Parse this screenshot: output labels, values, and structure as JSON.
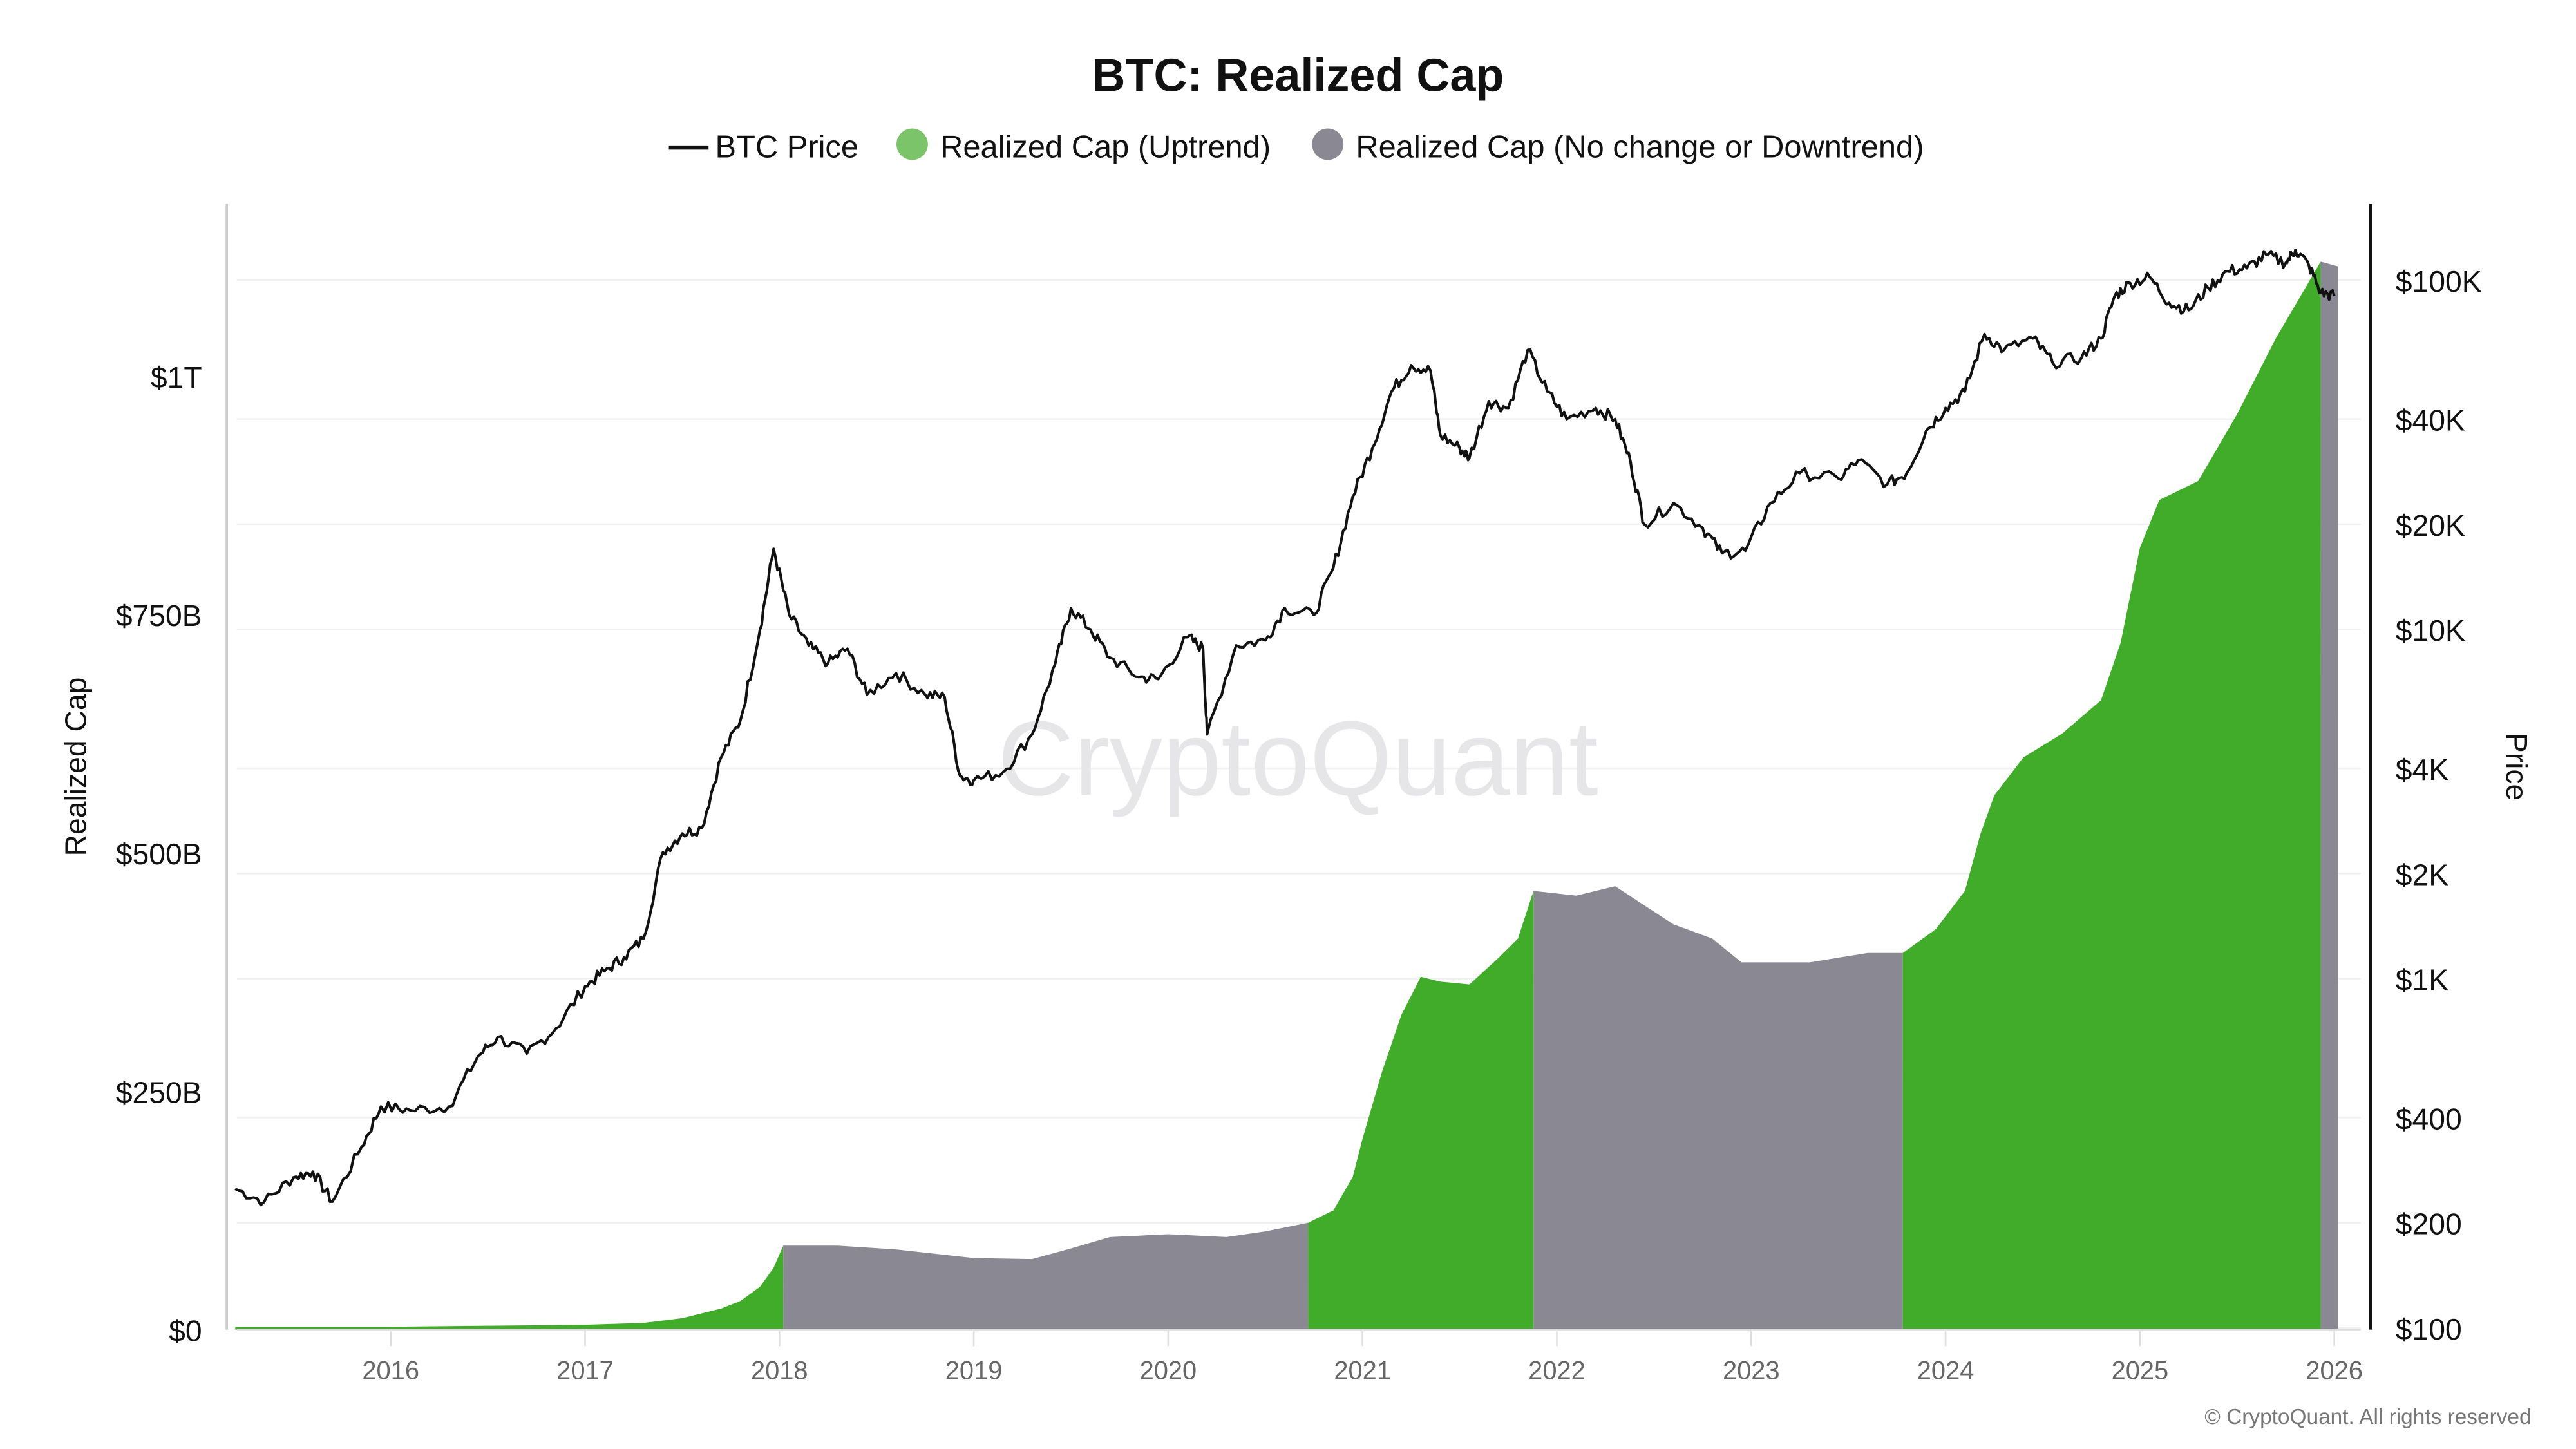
{
  "chart_data": {
    "type": "area",
    "title": "BTC: Realized Cap",
    "legend": {
      "placement": "top-center",
      "items": [
        {
          "label": "BTC Price",
          "kind": "line",
          "color": "#111111"
        },
        {
          "label": "Realized Cap (Uptrend)",
          "kind": "dot",
          "color": "#7cc46a"
        },
        {
          "label": "Realized Cap (No change or Downtrend)",
          "kind": "dot",
          "color": "#8a8893"
        }
      ]
    },
    "colors": {
      "uptrend": "#41ab2a",
      "downtrend": "#8a8893",
      "price": "#111111"
    },
    "ylabel_left": "Realized Cap",
    "ylabel_right": "Price",
    "y_left": {
      "range_billion_usd": [
        0,
        1180
      ],
      "ticks": [
        0,
        250,
        500,
        750,
        1000
      ],
      "tick_labels": [
        "$0",
        "$250B",
        "$500B",
        "$750B",
        "$1T"
      ]
    },
    "y_right": {
      "scale": "log",
      "range_usd": [
        100,
        170000
      ],
      "ticks": [
        100,
        200,
        400,
        1000,
        2000,
        4000,
        10000,
        20000,
        40000,
        100000
      ],
      "tick_labels": [
        "$100",
        "$200",
        "$400",
        "$1K",
        "$2K",
        "$4K",
        "$10K",
        "$20K",
        "$40K",
        "$100K"
      ]
    },
    "x": {
      "range_year": [
        2015.15,
        2026.15
      ],
      "ticks": [
        2016,
        2017,
        2018,
        2019,
        2020,
        2021,
        2022,
        2023,
        2024,
        2025,
        2026
      ],
      "tick_labels": [
        "2016",
        "2017",
        "2018",
        "2019",
        "2020",
        "2021",
        "2022",
        "2023",
        "2024",
        "2025",
        "2026"
      ]
    },
    "grid": "horizontal at price ticks",
    "realized_cap_billion": [
      [
        2015.2,
        3
      ],
      [
        2016.0,
        3
      ],
      [
        2016.5,
        4
      ],
      [
        2017.0,
        5
      ],
      [
        2017.3,
        7
      ],
      [
        2017.5,
        12
      ],
      [
        2017.7,
        22
      ],
      [
        2017.8,
        30
      ],
      [
        2017.9,
        45
      ],
      [
        2017.97,
        65
      ],
      [
        2018.02,
        88
      ],
      [
        2018.3,
        88
      ],
      [
        2018.6,
        84
      ],
      [
        2019.0,
        75
      ],
      [
        2019.3,
        74
      ],
      [
        2019.5,
        85
      ],
      [
        2019.7,
        97
      ],
      [
        2020.0,
        100
      ],
      [
        2020.3,
        97
      ],
      [
        2020.5,
        103
      ],
      [
        2020.72,
        112
      ],
      [
        2020.85,
        125
      ],
      [
        2020.95,
        160
      ],
      [
        2021.0,
        200
      ],
      [
        2021.1,
        270
      ],
      [
        2021.2,
        330
      ],
      [
        2021.3,
        370
      ],
      [
        2021.4,
        365
      ],
      [
        2021.55,
        362
      ],
      [
        2021.7,
        390
      ],
      [
        2021.8,
        410
      ],
      [
        2021.88,
        460
      ],
      [
        2022.1,
        455
      ],
      [
        2022.3,
        465
      ],
      [
        2022.45,
        445
      ],
      [
        2022.6,
        425
      ],
      [
        2022.8,
        410
      ],
      [
        2022.95,
        385
      ],
      [
        2023.3,
        385
      ],
      [
        2023.6,
        395
      ],
      [
        2023.78,
        395
      ],
      [
        2023.95,
        420
      ],
      [
        2024.1,
        460
      ],
      [
        2024.18,
        520
      ],
      [
        2024.25,
        560
      ],
      [
        2024.4,
        600
      ],
      [
        2024.6,
        625
      ],
      [
        2024.8,
        660
      ],
      [
        2024.9,
        720
      ],
      [
        2025.0,
        820
      ],
      [
        2025.1,
        870
      ],
      [
        2025.3,
        890
      ],
      [
        2025.5,
        960
      ],
      [
        2025.7,
        1040
      ],
      [
        2025.93,
        1120
      ],
      [
        2026.02,
        1115
      ]
    ],
    "trend_segments": [
      {
        "from": 2015.2,
        "to": 2018.02,
        "trend": "uptrend"
      },
      {
        "from": 2018.02,
        "to": 2020.72,
        "trend": "downtrend"
      },
      {
        "from": 2020.72,
        "to": 2021.88,
        "trend": "uptrend"
      },
      {
        "from": 2021.88,
        "to": 2023.78,
        "trend": "downtrend"
      },
      {
        "from": 2023.78,
        "to": 2025.93,
        "trend": "uptrend"
      },
      {
        "from": 2025.93,
        "to": 2026.02,
        "trend": "downtrend"
      }
    ],
    "btc_price_usd": [
      [
        2015.2,
        250
      ],
      [
        2015.35,
        230
      ],
      [
        2015.5,
        270
      ],
      [
        2015.6,
        280
      ],
      [
        2015.7,
        230
      ],
      [
        2015.85,
        330
      ],
      [
        2015.95,
        430
      ],
      [
        2016.1,
        420
      ],
      [
        2016.3,
        430
      ],
      [
        2016.45,
        600
      ],
      [
        2016.55,
        680
      ],
      [
        2016.7,
        610
      ],
      [
        2016.85,
        720
      ],
      [
        2017.0,
        950
      ],
      [
        2017.1,
        1050
      ],
      [
        2017.2,
        1150
      ],
      [
        2017.3,
        1300
      ],
      [
        2017.4,
        2300
      ],
      [
        2017.5,
        2600
      ],
      [
        2017.6,
        2700
      ],
      [
        2017.7,
        4300
      ],
      [
        2017.8,
        5500
      ],
      [
        2017.9,
        10000
      ],
      [
        2017.97,
        17000
      ],
      [
        2018.05,
        11000
      ],
      [
        2018.15,
        9000
      ],
      [
        2018.25,
        8000
      ],
      [
        2018.35,
        8800
      ],
      [
        2018.45,
        6500
      ],
      [
        2018.6,
        7500
      ],
      [
        2018.75,
        6500
      ],
      [
        2018.85,
        6400
      ],
      [
        2018.93,
        3800
      ],
      [
        2019.0,
        3700
      ],
      [
        2019.15,
        3900
      ],
      [
        2019.3,
        5000
      ],
      [
        2019.42,
        8000
      ],
      [
        2019.5,
        11500
      ],
      [
        2019.6,
        10000
      ],
      [
        2019.7,
        8300
      ],
      [
        2019.85,
        7300
      ],
      [
        2019.95,
        7200
      ],
      [
        2020.1,
        9500
      ],
      [
        2020.18,
        8800
      ],
      [
        2020.2,
        5000
      ],
      [
        2020.35,
        9000
      ],
      [
        2020.5,
        9300
      ],
      [
        2020.6,
        11500
      ],
      [
        2020.75,
        11000
      ],
      [
        2020.85,
        15000
      ],
      [
        2020.95,
        24000
      ],
      [
        2021.05,
        33000
      ],
      [
        2021.15,
        48000
      ],
      [
        2021.25,
        57000
      ],
      [
        2021.35,
        55000
      ],
      [
        2021.4,
        36000
      ],
      [
        2021.5,
        33000
      ],
      [
        2021.55,
        31000
      ],
      [
        2021.65,
        45000
      ],
      [
        2021.75,
        43000
      ],
      [
        2021.85,
        63000
      ],
      [
        2021.95,
        48000
      ],
      [
        2022.05,
        40000
      ],
      [
        2022.2,
        43000
      ],
      [
        2022.3,
        40000
      ],
      [
        2022.38,
        30000
      ],
      [
        2022.45,
        20000
      ],
      [
        2022.6,
        23000
      ],
      [
        2022.75,
        19500
      ],
      [
        2022.85,
        16500
      ],
      [
        2022.97,
        16800
      ],
      [
        2023.1,
        23000
      ],
      [
        2023.25,
        28000
      ],
      [
        2023.45,
        27000
      ],
      [
        2023.55,
        30500
      ],
      [
        2023.7,
        26000
      ],
      [
        2023.8,
        28000
      ],
      [
        2023.9,
        37000
      ],
      [
        2024.0,
        43000
      ],
      [
        2024.1,
        48000
      ],
      [
        2024.2,
        70000
      ],
      [
        2024.3,
        63000
      ],
      [
        2024.45,
        68000
      ],
      [
        2024.55,
        58000
      ],
      [
        2024.7,
        60000
      ],
      [
        2024.8,
        68000
      ],
      [
        2024.87,
        90000
      ],
      [
        2024.95,
        98000
      ],
      [
        2025.05,
        102000
      ],
      [
        2025.15,
        86000
      ],
      [
        2025.25,
        82000
      ],
      [
        2025.35,
        95000
      ],
      [
        2025.45,
        106000
      ],
      [
        2025.55,
        108000
      ],
      [
        2025.65,
        118000
      ],
      [
        2025.75,
        112000
      ],
      [
        2025.8,
        122000
      ],
      [
        2025.87,
        110000
      ],
      [
        2025.93,
        92000
      ],
      [
        2026.0,
        90000
      ]
    ],
    "watermark": "CryptoQuant",
    "copyright": "© CryptoQuant. All rights reserved"
  }
}
